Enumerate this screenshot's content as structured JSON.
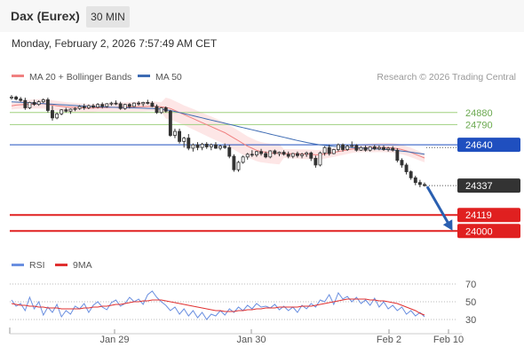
{
  "header": {
    "title": "Dax (Eurex)",
    "timeframe": "30 MIN"
  },
  "datetime": "Monday, February 2, 2026 7:57:49 AM CET",
  "legend": {
    "ma20": "MA 20 + Bollinger Bands",
    "ma50": "MA 50",
    "rsi": "RSI",
    "rsi_ma": "9MA"
  },
  "credit": "Research © 2026 Trading Central",
  "colors": {
    "ma20": "#f08080",
    "ma50": "#3d6bb3",
    "bands": "#fde2e2",
    "up": "#ffffff",
    "down": "#333333",
    "resistance": "#9fd07f",
    "pivot": "#1f4fbf",
    "support": "#e02020",
    "last": "#333333",
    "rsi": "#6a8fe0",
    "rsi_ma": "#e03030",
    "arrow": "#2a5fb0"
  },
  "chart_data": [
    {
      "type": "candlestick",
      "x_labels": [
        "Jan 29",
        "Jan 30",
        "Feb 2",
        "Feb 10"
      ],
      "ylim": [
        23850,
        25050
      ],
      "levels": [
        {
          "value": 24880,
          "label": "24880",
          "kind": "resistance"
        },
        {
          "value": 24790,
          "label": "24790",
          "kind": "resistance"
        },
        {
          "value": 24640,
          "label": "24640",
          "kind": "pivot"
        },
        {
          "value": 24337,
          "label": "24337",
          "kind": "last"
        },
        {
          "value": 24119,
          "label": "24119",
          "kind": "support"
        },
        {
          "value": 24000,
          "label": "24000",
          "kind": "support"
        }
      ],
      "candles": [
        [
          24990,
          25010,
          24975,
          24995
        ],
        [
          24995,
          25005,
          24970,
          24980
        ],
        [
          24980,
          24995,
          24960,
          24970
        ],
        [
          24970,
          24990,
          24900,
          24915
        ],
        [
          24915,
          24960,
          24905,
          24955
        ],
        [
          24955,
          24975,
          24930,
          24940
        ],
        [
          24940,
          24970,
          24930,
          24960
        ],
        [
          24960,
          24985,
          24950,
          24975
        ],
        [
          24975,
          24990,
          24880,
          24895
        ],
        [
          24895,
          24930,
          24820,
          24840
        ],
        [
          24840,
          24880,
          24830,
          24870
        ],
        [
          24870,
          24905,
          24860,
          24900
        ],
        [
          24900,
          24915,
          24880,
          24890
        ],
        [
          24890,
          24910,
          24870,
          24905
        ],
        [
          24905,
          24920,
          24890,
          24910
        ],
        [
          24910,
          24935,
          24900,
          24925
        ],
        [
          24925,
          24945,
          24900,
          24915
        ],
        [
          24915,
          24940,
          24905,
          24930
        ],
        [
          24930,
          24945,
          24910,
          24920
        ],
        [
          24920,
          24950,
          24910,
          24940
        ],
        [
          24940,
          24955,
          24910,
          24925
        ],
        [
          24925,
          24950,
          24915,
          24945
        ],
        [
          24945,
          24960,
          24930,
          24950
        ],
        [
          24950,
          24970,
          24935,
          24945
        ],
        [
          24945,
          24960,
          24900,
          24910
        ],
        [
          24910,
          24945,
          24900,
          24940
        ],
        [
          24940,
          24950,
          24910,
          24925
        ],
        [
          24925,
          24955,
          24920,
          24950
        ],
        [
          24950,
          24965,
          24930,
          24945
        ],
        [
          24945,
          24960,
          24925,
          24955
        ],
        [
          24955,
          24975,
          24940,
          24950
        ],
        [
          24950,
          24965,
          24920,
          24925
        ],
        [
          24925,
          24940,
          24870,
          24880
        ],
        [
          24880,
          24920,
          24870,
          24915
        ],
        [
          24915,
          24925,
          24880,
          24890
        ],
        [
          24890,
          24900,
          24700,
          24710
        ],
        [
          24710,
          24760,
          24690,
          24740
        ],
        [
          24740,
          24760,
          24650,
          24665
        ],
        [
          24665,
          24700,
          24620,
          24690
        ],
        [
          24690,
          24720,
          24600,
          24615
        ],
        [
          24615,
          24650,
          24590,
          24640
        ],
        [
          24640,
          24660,
          24600,
          24620
        ],
        [
          24620,
          24655,
          24600,
          24645
        ],
        [
          24645,
          24660,
          24610,
          24625
        ],
        [
          24625,
          24650,
          24600,
          24640
        ],
        [
          24640,
          24660,
          24610,
          24615
        ],
        [
          24615,
          24640,
          24600,
          24630
        ],
        [
          24630,
          24650,
          24610,
          24620
        ],
        [
          24620,
          24640,
          24540,
          24555
        ],
        [
          24555,
          24570,
          24440,
          24455
        ],
        [
          24455,
          24520,
          24440,
          24510
        ],
        [
          24510,
          24560,
          24500,
          24550
        ],
        [
          24550,
          24580,
          24530,
          24570
        ],
        [
          24570,
          24600,
          24550,
          24565
        ],
        [
          24565,
          24595,
          24550,
          24590
        ],
        [
          24590,
          24610,
          24560,
          24575
        ],
        [
          24575,
          24590,
          24540,
          24550
        ],
        [
          24550,
          24600,
          24540,
          24595
        ],
        [
          24595,
          24605,
          24565,
          24575
        ],
        [
          24575,
          24590,
          24555,
          24585
        ],
        [
          24585,
          24600,
          24560,
          24570
        ],
        [
          24570,
          24590,
          24540,
          24555
        ],
        [
          24555,
          24580,
          24540,
          24575
        ],
        [
          24575,
          24590,
          24545,
          24560
        ],
        [
          24560,
          24580,
          24540,
          24570
        ],
        [
          24570,
          24590,
          24550,
          24580
        ],
        [
          24580,
          24590,
          24520,
          24540
        ],
        [
          24540,
          24560,
          24470,
          24490
        ],
        [
          24490,
          24590,
          24480,
          24580
        ],
        [
          24580,
          24630,
          24560,
          24620
        ],
        [
          24620,
          24640,
          24560,
          24575
        ],
        [
          24575,
          24610,
          24570,
          24605
        ],
        [
          24605,
          24650,
          24590,
          24640
        ],
        [
          24640,
          24650,
          24590,
          24605
        ],
        [
          24605,
          24640,
          24595,
          24630
        ],
        [
          24630,
          24665,
          24620,
          24635
        ],
        [
          24635,
          24645,
          24590,
          24600
        ],
        [
          24600,
          24630,
          24595,
          24620
        ],
        [
          24620,
          24635,
          24590,
          24600
        ],
        [
          24600,
          24630,
          24590,
          24625
        ],
        [
          24625,
          24640,
          24600,
          24610
        ],
        [
          24610,
          24635,
          24600,
          24620
        ],
        [
          24620,
          24635,
          24595,
          24605
        ],
        [
          24605,
          24625,
          24590,
          24615
        ],
        [
          24615,
          24630,
          24590,
          24600
        ],
        [
          24600,
          24615,
          24510,
          24525
        ],
        [
          24525,
          24540,
          24470,
          24490
        ],
        [
          24490,
          24505,
          24420,
          24440
        ],
        [
          24440,
          24450,
          24380,
          24395
        ],
        [
          24395,
          24410,
          24340,
          24360
        ],
        [
          24360,
          24380,
          24325,
          24345
        ],
        [
          24345,
          24360,
          24330,
          24337
        ]
      ],
      "ma20": [
        24930,
        24935,
        24938,
        24940,
        24942,
        24944,
        24945,
        24945,
        24940,
        24935,
        24930,
        24926,
        24922,
        24920,
        24918,
        24916,
        24914,
        24912,
        24913,
        24915,
        24916,
        24917,
        24918,
        24919,
        24920,
        24921,
        24922,
        24922,
        24923,
        24924,
        24925,
        24926,
        24925,
        24922,
        24918,
        24910,
        24895,
        24880,
        24865,
        24850,
        24835,
        24820,
        24805,
        24790,
        24775,
        24760,
        24745,
        24730,
        24710,
        24690,
        24670,
        24650,
        24630,
        24615,
        24600,
        24590,
        24585,
        24580,
        24578,
        24576,
        24575,
        24574,
        24573,
        24572,
        24571,
        24570,
        24569,
        24566,
        24567,
        24572,
        24578,
        24584,
        24590,
        24596,
        24602,
        24608,
        24612,
        24615,
        24617,
        24618,
        24619,
        24620,
        24620,
        24619,
        24617,
        24612,
        24605,
        24595,
        24583,
        24570,
        24556,
        24542
      ],
      "ma50": [
        24960,
        24958,
        24956,
        24954,
        24952,
        24950,
        24948,
        24946,
        24944,
        24942,
        24940,
        24938,
        24936,
        24934,
        24932,
        24930,
        24928,
        24926,
        24924,
        24922,
        24921,
        24920,
        24919,
        24918,
        24917,
        24916,
        24915,
        24914,
        24913,
        24912,
        24911,
        24910,
        24908,
        24905,
        24900,
        24895,
        24888,
        24880,
        24872,
        24864,
        24856,
        24848,
        24840,
        24832,
        24824,
        24816,
        24808,
        24800,
        24792,
        24784,
        24776,
        24768,
        24760,
        24752,
        24744,
        24736,
        24728,
        24720,
        24712,
        24704,
        24696,
        24688,
        24680,
        24672,
        24665,
        24658,
        24651,
        24645,
        24640,
        24636,
        24632,
        24629,
        24626,
        24624,
        24622,
        24620,
        24618,
        24616,
        24614,
        24612,
        24610,
        24608,
        24606,
        24604,
        24602,
        24598,
        24594,
        24590,
        24585,
        24580,
        24575,
        24570
      ]
    },
    {
      "type": "line",
      "name": "RSI panel",
      "ylim": [
        22,
        76
      ],
      "yticks": [
        30,
        50,
        70
      ],
      "rsi": [
        52,
        45,
        48,
        40,
        55,
        42,
        50,
        35,
        44,
        38,
        47,
        33,
        40,
        36,
        45,
        42,
        48,
        38,
        46,
        50,
        44,
        41,
        49,
        52,
        45,
        48,
        55,
        50,
        53,
        47,
        58,
        62,
        55,
        50,
        46,
        40,
        44,
        36,
        42,
        34,
        40,
        32,
        38,
        30,
        36,
        34,
        40,
        35,
        42,
        38,
        44,
        40,
        46,
        42,
        48,
        44,
        45,
        43,
        47,
        41,
        45,
        40,
        44,
        38,
        46,
        42,
        48,
        44,
        52,
        50,
        58,
        47,
        60,
        53,
        56,
        50,
        55,
        48,
        52,
        46,
        54,
        44,
        50,
        42,
        46,
        40,
        44,
        36,
        40,
        34,
        38,
        33
      ],
      "rsi_ma": [
        48,
        47,
        46,
        46,
        45,
        45,
        44,
        44,
        43,
        43,
        43,
        42,
        42,
        42,
        42,
        42,
        43,
        43,
        44,
        44,
        45,
        45,
        46,
        47,
        47,
        48,
        49,
        50,
        50,
        51,
        51,
        52,
        52,
        52,
        51,
        50,
        49,
        48,
        47,
        46,
        45,
        44,
        43,
        42,
        41,
        40,
        40,
        39,
        39,
        39,
        40,
        40,
        41,
        41,
        42,
        42,
        43,
        43,
        43,
        44,
        44,
        44,
        44,
        44,
        45,
        45,
        45,
        46,
        47,
        48,
        49,
        50,
        51,
        52,
        53,
        53,
        53,
        53,
        53,
        52,
        52,
        51,
        51,
        50,
        49,
        48,
        46,
        44,
        42,
        40,
        37,
        35
      ]
    }
  ]
}
